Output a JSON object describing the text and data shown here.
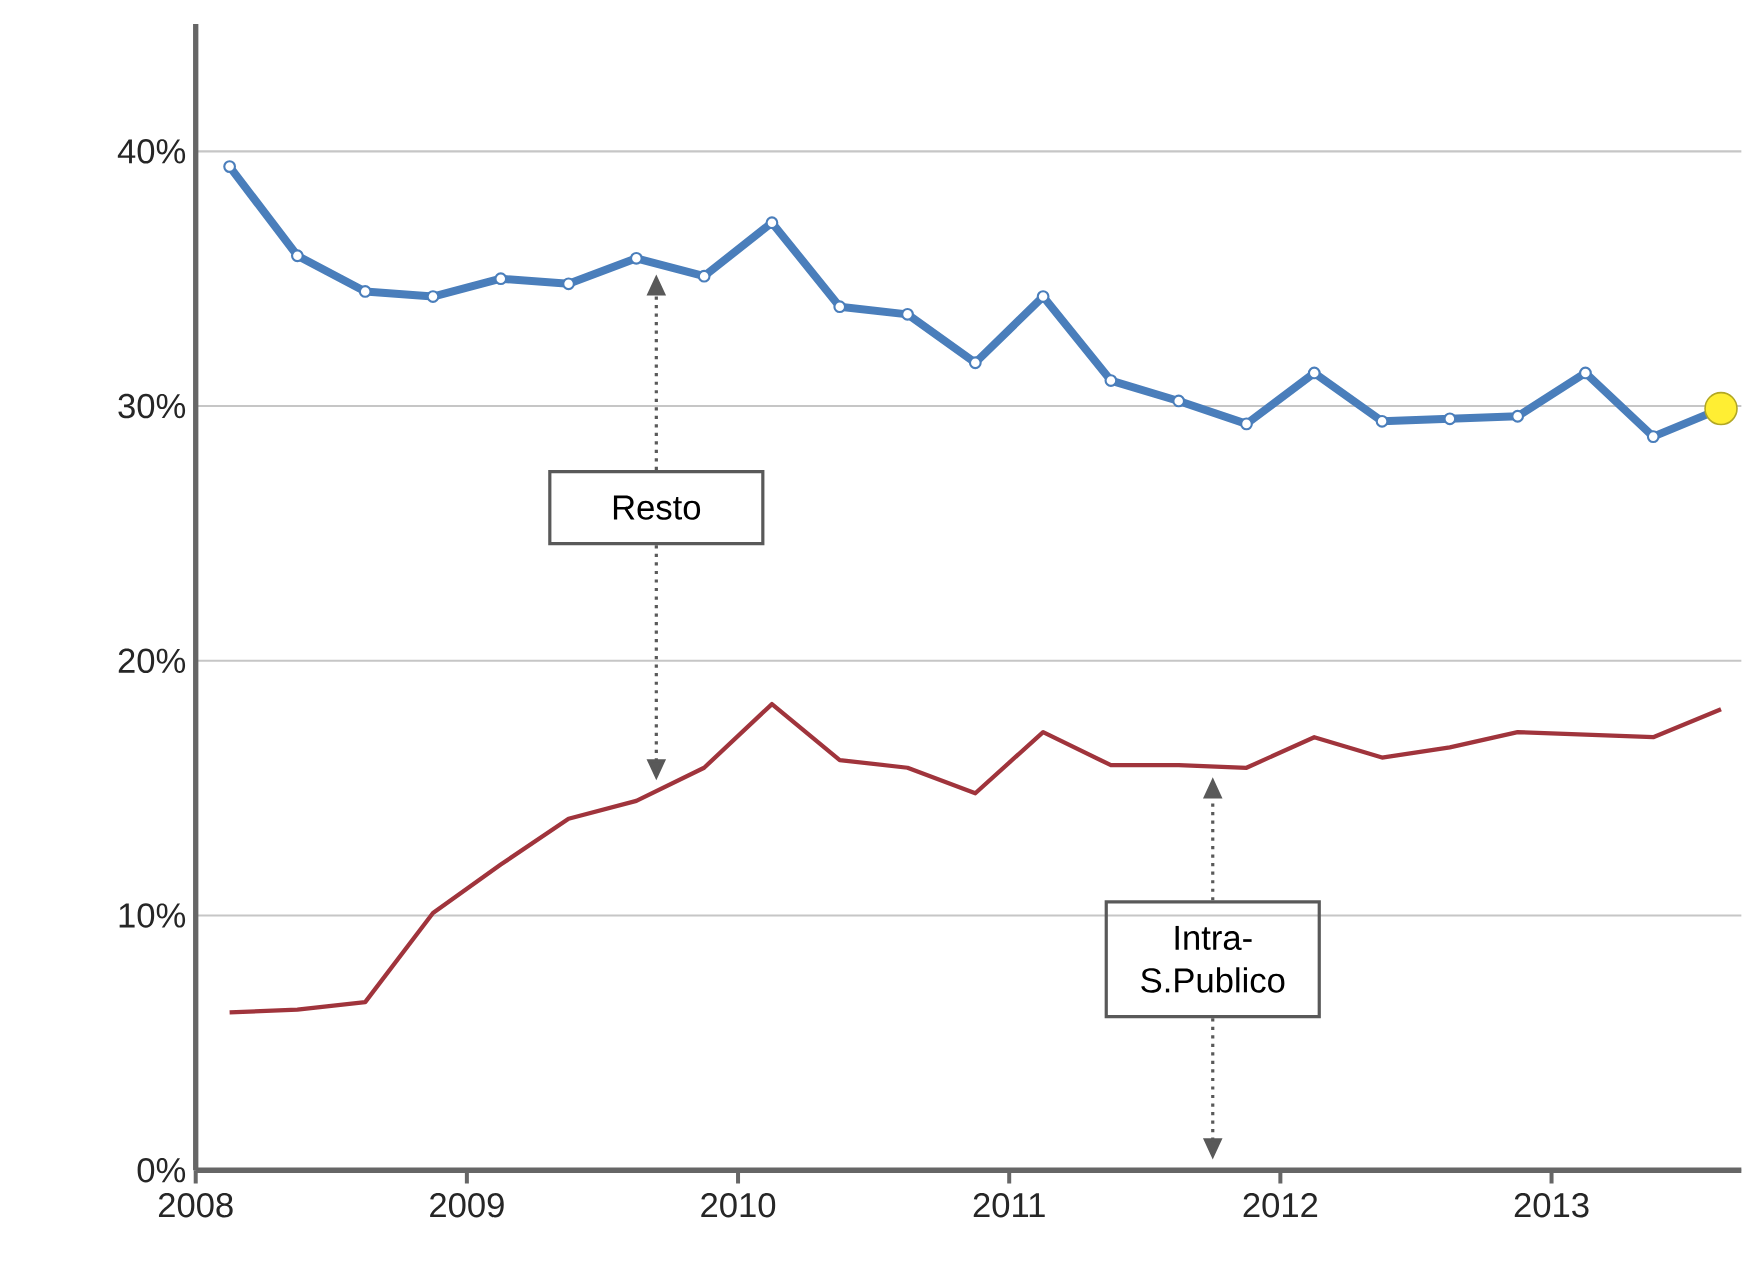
{
  "chart_data": {
    "type": "line",
    "xlim": [
      2008,
      2013.7
    ],
    "ylim": [
      0,
      45
    ],
    "xticks": [
      2008,
      2009,
      2010,
      2011,
      2012,
      2013
    ],
    "yticks": [
      {
        "value": 0,
        "label": "0%"
      },
      {
        "value": 10,
        "label": "10%"
      },
      {
        "value": 20,
        "label": "20%"
      },
      {
        "value": 30,
        "label": "30%"
      },
      {
        "value": 40,
        "label": "40%"
      }
    ],
    "grid": "y",
    "series": [
      {
        "color": "#4a7ebb",
        "marker": "circle",
        "x": [
          2008.125,
          2008.375,
          2008.625,
          2008.875,
          2009.125,
          2009.375,
          2009.625,
          2009.875,
          2010.125,
          2010.375,
          2010.625,
          2010.875,
          2011.125,
          2011.375,
          2011.625,
          2011.875,
          2012.125,
          2012.375,
          2012.625,
          2012.875,
          2013.125,
          2013.375,
          2013.625
        ],
        "values": [
          39.4,
          35.9,
          34.5,
          34.3,
          35.0,
          34.8,
          35.8,
          35.1,
          37.2,
          33.9,
          33.6,
          31.7,
          34.3,
          31.0,
          30.2,
          29.3,
          31.3,
          29.4,
          29.5,
          29.6,
          31.3,
          28.8,
          29.9
        ]
      },
      {
        "color": "#a0343c",
        "marker": "none",
        "x": [
          2008.125,
          2008.375,
          2008.625,
          2008.875,
          2009.125,
          2009.375,
          2009.625,
          2009.875,
          2010.125,
          2010.375,
          2010.625,
          2010.875,
          2011.125,
          2011.375,
          2011.625,
          2011.875,
          2012.125,
          2012.375,
          2012.625,
          2012.875,
          2013.125,
          2013.375,
          2013.625
        ],
        "values": [
          6.2,
          6.3,
          6.6,
          10.1,
          12.0,
          13.8,
          14.5,
          15.8,
          18.3,
          16.1,
          15.8,
          14.8,
          17.2,
          15.9,
          15.9,
          15.8,
          17.0,
          16.2,
          16.6,
          17.2,
          17.1,
          17.0,
          18.1
        ]
      },
      {
        "type": "scatter",
        "color": "#ffee33",
        "marker": "circle",
        "x": [
          2013.625
        ],
        "values": [
          29.9
        ]
      }
    ],
    "annotations": [
      "Resto",
      "Intra-S.Publico"
    ]
  }
}
